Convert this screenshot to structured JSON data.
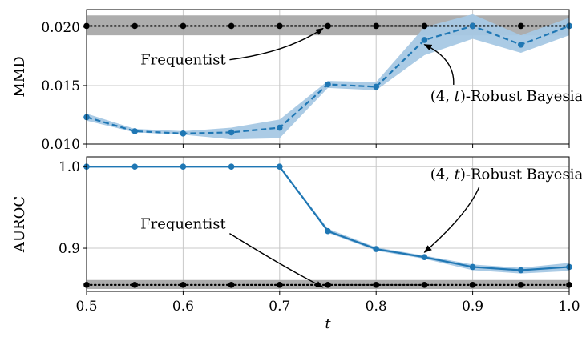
{
  "chart_data": [
    {
      "type": "line",
      "ylabel": "MMD",
      "xlim": [
        0.5,
        1.0
      ],
      "ylim": [
        0.01,
        0.0215
      ],
      "yticks": [
        "0.010",
        "0.015",
        "0.020"
      ],
      "xticks": [],
      "grid": true,
      "series": [
        {
          "name": "Frequentist",
          "color": "#000000",
          "style": "dotted-markers",
          "x": [
            0.5,
            0.55,
            0.6,
            0.65,
            0.7,
            0.75,
            0.8,
            0.85,
            0.9,
            0.95,
            1.0
          ],
          "y": [
            0.0201,
            0.0201,
            0.0201,
            0.0201,
            0.0201,
            0.0201,
            0.0201,
            0.0201,
            0.0201,
            0.0201,
            0.0201
          ],
          "band_lo": [
            0.0193,
            0.0193,
            0.0193,
            0.0193,
            0.0193,
            0.0193,
            0.0193,
            0.0193,
            0.0193,
            0.0193,
            0.0193
          ],
          "band_hi": [
            0.021,
            0.021,
            0.021,
            0.021,
            0.021,
            0.021,
            0.021,
            0.021,
            0.021,
            0.021,
            0.021
          ],
          "band_color": "#a9a9a9"
        },
        {
          "name": "(4, t)-Robust Bayesian",
          "color": "#1f77b4",
          "style": "dashed-markers",
          "x": [
            0.5,
            0.55,
            0.6,
            0.65,
            0.7,
            0.75,
            0.8,
            0.85,
            0.9,
            0.95,
            1.0
          ],
          "y": [
            0.0123,
            0.0111,
            0.0109,
            0.011,
            0.0114,
            0.0151,
            0.0149,
            0.0189,
            0.0201,
            0.0185,
            0.0201
          ],
          "band_lo": [
            0.012,
            0.011,
            0.0108,
            0.0104,
            0.0105,
            0.0148,
            0.0146,
            0.0176,
            0.019,
            0.0178,
            0.0193
          ],
          "band_hi": [
            0.0126,
            0.0113,
            0.0111,
            0.0114,
            0.0121,
            0.0154,
            0.0153,
            0.02,
            0.0211,
            0.0193,
            0.0208
          ],
          "band_color": "#a6c8e4"
        }
      ],
      "annotations": [
        {
          "text": "Frequentist",
          "x": 0.6,
          "y": 0.0168,
          "arrow_to": [
            0.75,
            0.0201
          ]
        },
        {
          "text": "(4, t)-Robust Bayesian",
          "x": 0.94,
          "y": 0.0137,
          "arrow_to": [
            0.85,
            0.0181
          ]
        }
      ]
    },
    {
      "type": "line",
      "xlabel": "t",
      "ylabel": "AUROC",
      "xlim": [
        0.5,
        1.0
      ],
      "ylim": [
        0.847,
        1.012
      ],
      "yticks": [
        "0.9",
        "1.0"
      ],
      "xticks": [
        "0.5",
        "0.6",
        "0.7",
        "0.8",
        "0.9",
        "1.0"
      ],
      "grid": true,
      "series": [
        {
          "name": "Frequentist",
          "color": "#000000",
          "style": "dotted-markers",
          "x": [
            0.5,
            0.55,
            0.6,
            0.65,
            0.7,
            0.75,
            0.8,
            0.85,
            0.9,
            0.95,
            1.0
          ],
          "y": [
            0.855,
            0.855,
            0.855,
            0.855,
            0.855,
            0.855,
            0.855,
            0.855,
            0.855,
            0.855,
            0.855
          ],
          "band_lo": [
            0.85,
            0.85,
            0.85,
            0.85,
            0.85,
            0.85,
            0.85,
            0.85,
            0.85,
            0.85,
            0.85
          ],
          "band_hi": [
            0.861,
            0.861,
            0.861,
            0.861,
            0.861,
            0.861,
            0.861,
            0.861,
            0.861,
            0.861,
            0.861
          ],
          "band_color": "#a9a9a9"
        },
        {
          "name": "(4, t)-Robust Bayesian",
          "color": "#1f77b4",
          "style": "solid-markers",
          "x": [
            0.5,
            0.55,
            0.6,
            0.65,
            0.7,
            0.75,
            0.8,
            0.85,
            0.9,
            0.95,
            1.0
          ],
          "y": [
            1.0,
            1.0,
            1.0,
            1.0,
            1.0,
            0.921,
            0.899,
            0.889,
            0.877,
            0.873,
            0.877
          ],
          "band_lo": [
            0.999,
            0.999,
            0.999,
            0.999,
            0.999,
            0.919,
            0.897,
            0.887,
            0.873,
            0.869,
            0.872
          ],
          "band_hi": [
            1.001,
            1.001,
            1.001,
            1.001,
            1.001,
            0.924,
            0.901,
            0.891,
            0.88,
            0.876,
            0.882
          ],
          "band_color": "#a6c8e4"
        }
      ],
      "annotations": [
        {
          "text": "Frequentist",
          "x": 0.6,
          "y": 0.924,
          "arrow_to": [
            0.75,
            0.855
          ]
        },
        {
          "text": "(4, t)-Robust Bayesian",
          "x": 0.94,
          "y": 0.985,
          "arrow_to": [
            0.85,
            0.889
          ]
        }
      ]
    }
  ]
}
